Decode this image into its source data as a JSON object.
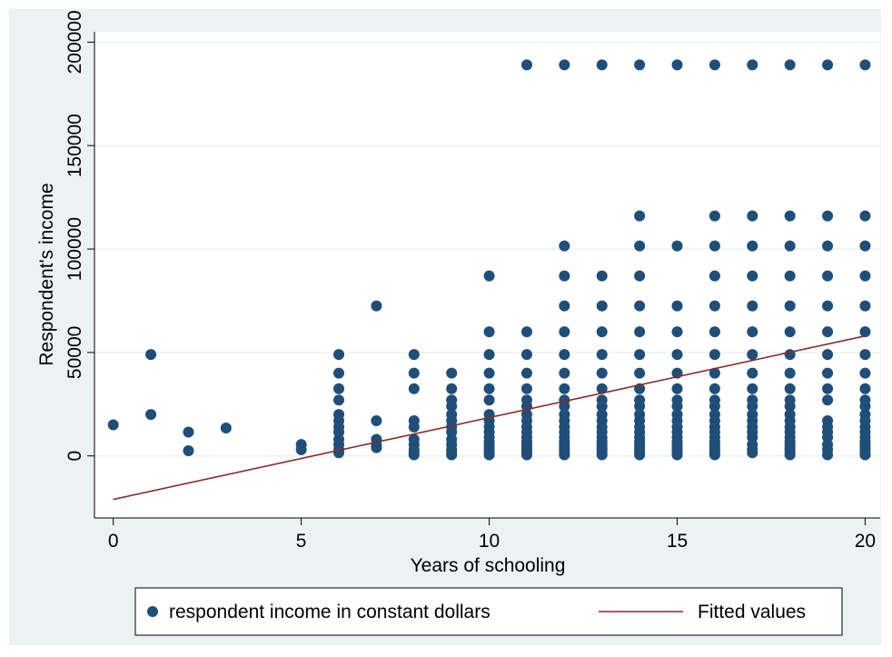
{
  "chart_data": {
    "type": "scatter",
    "title": "",
    "xlabel": "Years of schooling",
    "ylabel": "Respondent's income",
    "xlim": [
      -0.5,
      20.4
    ],
    "ylim": [
      -30000,
      205000
    ],
    "x_ticks": [
      "0",
      "5",
      "10",
      "15",
      "20"
    ],
    "y_ticks": [
      "0",
      "50000",
      "100000",
      "150000",
      "200000"
    ],
    "grid": true,
    "legend_position": "bottom",
    "colors": {
      "points": "#1f4e79",
      "fit_line": "#8b2a2a",
      "outer_bg": "#eaf2f3",
      "plot_bg": "#ffffff",
      "grid": "#eaf2f3"
    },
    "series": [
      {
        "name": "respondent income in constant dollars",
        "kind": "scatter",
        "points": [
          [
            0,
            15000
          ],
          [
            1,
            49000
          ],
          [
            1,
            20000
          ],
          [
            2,
            11500
          ],
          [
            2,
            2500
          ],
          [
            3,
            13500
          ],
          [
            5,
            5500
          ],
          [
            5,
            3000
          ],
          [
            6,
            49000
          ],
          [
            6,
            40000
          ],
          [
            6,
            32500
          ],
          [
            6,
            27000
          ],
          [
            6,
            20000
          ],
          [
            6,
            17000
          ],
          [
            6,
            14000
          ],
          [
            6,
            11500
          ],
          [
            6,
            8000
          ],
          [
            6,
            5500
          ],
          [
            6,
            3000
          ],
          [
            6,
            1500
          ],
          [
            7,
            72500
          ],
          [
            7,
            17000
          ],
          [
            7,
            8000
          ],
          [
            7,
            5500
          ],
          [
            7,
            4000
          ],
          [
            8,
            49000
          ],
          [
            8,
            40000
          ],
          [
            8,
            32500
          ],
          [
            8,
            17000
          ],
          [
            8,
            14000
          ],
          [
            8,
            8000
          ],
          [
            8,
            5500
          ],
          [
            8,
            3000
          ],
          [
            8,
            1500
          ],
          [
            8,
            500
          ],
          [
            9,
            40000
          ],
          [
            9,
            32500
          ],
          [
            9,
            27000
          ],
          [
            9,
            24000
          ],
          [
            9,
            20000
          ],
          [
            9,
            17000
          ],
          [
            9,
            14000
          ],
          [
            9,
            11500
          ],
          [
            9,
            8000
          ],
          [
            9,
            5500
          ],
          [
            9,
            3000
          ],
          [
            9,
            1500
          ],
          [
            9,
            500
          ],
          [
            10,
            87000
          ],
          [
            10,
            60000
          ],
          [
            10,
            49000
          ],
          [
            10,
            40000
          ],
          [
            10,
            32500
          ],
          [
            10,
            27000
          ],
          [
            10,
            20000
          ],
          [
            10,
            17000
          ],
          [
            10,
            14000
          ],
          [
            10,
            11500
          ],
          [
            10,
            9000
          ],
          [
            10,
            7000
          ],
          [
            10,
            5500
          ],
          [
            10,
            4000
          ],
          [
            10,
            3000
          ],
          [
            10,
            1500
          ],
          [
            10,
            500
          ],
          [
            11,
            189000
          ],
          [
            11,
            60000
          ],
          [
            11,
            49000
          ],
          [
            11,
            40000
          ],
          [
            11,
            32500
          ],
          [
            11,
            27000
          ],
          [
            11,
            24000
          ],
          [
            11,
            20000
          ],
          [
            11,
            17000
          ],
          [
            11,
            14000
          ],
          [
            11,
            11500
          ],
          [
            11,
            9000
          ],
          [
            11,
            7000
          ],
          [
            11,
            5500
          ],
          [
            11,
            4000
          ],
          [
            11,
            3000
          ],
          [
            11,
            1500
          ],
          [
            11,
            500
          ],
          [
            12,
            189000
          ],
          [
            12,
            101500
          ],
          [
            12,
            87000
          ],
          [
            12,
            72500
          ],
          [
            12,
            60000
          ],
          [
            12,
            49000
          ],
          [
            12,
            40000
          ],
          [
            12,
            32500
          ],
          [
            12,
            27000
          ],
          [
            12,
            24000
          ],
          [
            12,
            20000
          ],
          [
            12,
            17000
          ],
          [
            12,
            14000
          ],
          [
            12,
            11500
          ],
          [
            12,
            9000
          ],
          [
            12,
            7000
          ],
          [
            12,
            5500
          ],
          [
            12,
            4000
          ],
          [
            12,
            3000
          ],
          [
            12,
            1500
          ],
          [
            12,
            500
          ],
          [
            13,
            189000
          ],
          [
            13,
            87000
          ],
          [
            13,
            72500
          ],
          [
            13,
            60000
          ],
          [
            13,
            49000
          ],
          [
            13,
            40000
          ],
          [
            13,
            32500
          ],
          [
            13,
            27000
          ],
          [
            13,
            24000
          ],
          [
            13,
            20000
          ],
          [
            13,
            17000
          ],
          [
            13,
            14000
          ],
          [
            13,
            11500
          ],
          [
            13,
            9000
          ],
          [
            13,
            7000
          ],
          [
            13,
            5500
          ],
          [
            13,
            4000
          ],
          [
            13,
            3000
          ],
          [
            13,
            1500
          ],
          [
            13,
            500
          ],
          [
            14,
            189000
          ],
          [
            14,
            116000
          ],
          [
            14,
            101500
          ],
          [
            14,
            87000
          ],
          [
            14,
            72500
          ],
          [
            14,
            60000
          ],
          [
            14,
            49000
          ],
          [
            14,
            40000
          ],
          [
            14,
            32500
          ],
          [
            14,
            27000
          ],
          [
            14,
            24000
          ],
          [
            14,
            20000
          ],
          [
            14,
            17000
          ],
          [
            14,
            14000
          ],
          [
            14,
            11500
          ],
          [
            14,
            9000
          ],
          [
            14,
            7000
          ],
          [
            14,
            5500
          ],
          [
            14,
            4000
          ],
          [
            14,
            3000
          ],
          [
            14,
            1500
          ],
          [
            14,
            500
          ],
          [
            15,
            189000
          ],
          [
            15,
            101500
          ],
          [
            15,
            72500
          ],
          [
            15,
            60000
          ],
          [
            15,
            49000
          ],
          [
            15,
            40000
          ],
          [
            15,
            32500
          ],
          [
            15,
            27000
          ],
          [
            15,
            24000
          ],
          [
            15,
            20000
          ],
          [
            15,
            17000
          ],
          [
            15,
            14000
          ],
          [
            15,
            11500
          ],
          [
            15,
            9000
          ],
          [
            15,
            7000
          ],
          [
            15,
            5500
          ],
          [
            15,
            4000
          ],
          [
            15,
            3000
          ],
          [
            15,
            1500
          ],
          [
            15,
            500
          ],
          [
            16,
            189000
          ],
          [
            16,
            116000
          ],
          [
            16,
            101500
          ],
          [
            16,
            87000
          ],
          [
            16,
            72500
          ],
          [
            16,
            60000
          ],
          [
            16,
            49000
          ],
          [
            16,
            40000
          ],
          [
            16,
            32500
          ],
          [
            16,
            27000
          ],
          [
            16,
            24000
          ],
          [
            16,
            20000
          ],
          [
            16,
            17000
          ],
          [
            16,
            14000
          ],
          [
            16,
            11500
          ],
          [
            16,
            9000
          ],
          [
            16,
            7000
          ],
          [
            16,
            5500
          ],
          [
            16,
            4000
          ],
          [
            16,
            3000
          ],
          [
            16,
            1500
          ],
          [
            16,
            500
          ],
          [
            17,
            189000
          ],
          [
            17,
            116000
          ],
          [
            17,
            101500
          ],
          [
            17,
            87000
          ],
          [
            17,
            72500
          ],
          [
            17,
            60000
          ],
          [
            17,
            49000
          ],
          [
            17,
            40000
          ],
          [
            17,
            32500
          ],
          [
            17,
            27000
          ],
          [
            17,
            24000
          ],
          [
            17,
            20000
          ],
          [
            17,
            17000
          ],
          [
            17,
            14000
          ],
          [
            17,
            11500
          ],
          [
            17,
            9000
          ],
          [
            17,
            5500
          ],
          [
            17,
            3000
          ],
          [
            17,
            1500
          ],
          [
            18,
            189000
          ],
          [
            18,
            116000
          ],
          [
            18,
            101500
          ],
          [
            18,
            87000
          ],
          [
            18,
            72500
          ],
          [
            18,
            60000
          ],
          [
            18,
            49000
          ],
          [
            18,
            40000
          ],
          [
            18,
            32500
          ],
          [
            18,
            27000
          ],
          [
            18,
            24000
          ],
          [
            18,
            20000
          ],
          [
            18,
            17000
          ],
          [
            18,
            14000
          ],
          [
            18,
            11500
          ],
          [
            18,
            9000
          ],
          [
            18,
            7000
          ],
          [
            18,
            5500
          ],
          [
            18,
            4000
          ],
          [
            18,
            3000
          ],
          [
            18,
            1500
          ],
          [
            18,
            500
          ],
          [
            19,
            189000
          ],
          [
            19,
            116000
          ],
          [
            19,
            101500
          ],
          [
            19,
            87000
          ],
          [
            19,
            72500
          ],
          [
            19,
            60000
          ],
          [
            19,
            49000
          ],
          [
            19,
            40000
          ],
          [
            19,
            32500
          ],
          [
            19,
            27000
          ],
          [
            19,
            17000
          ],
          [
            19,
            14000
          ],
          [
            19,
            11500
          ],
          [
            19,
            9000
          ],
          [
            19,
            5500
          ],
          [
            19,
            3000
          ],
          [
            19,
            500
          ],
          [
            20,
            189000
          ],
          [
            20,
            116000
          ],
          [
            20,
            101500
          ],
          [
            20,
            87000
          ],
          [
            20,
            72500
          ],
          [
            20,
            60000
          ],
          [
            20,
            49000
          ],
          [
            20,
            40000
          ],
          [
            20,
            32500
          ],
          [
            20,
            27000
          ],
          [
            20,
            24000
          ],
          [
            20,
            20000
          ],
          [
            20,
            17000
          ],
          [
            20,
            14000
          ],
          [
            20,
            11500
          ],
          [
            20,
            9000
          ],
          [
            20,
            7000
          ],
          [
            20,
            5500
          ],
          [
            20,
            4000
          ],
          [
            20,
            3000
          ],
          [
            20,
            1500
          ],
          [
            20,
            500
          ]
        ]
      },
      {
        "name": "Fitted values",
        "kind": "line",
        "points": [
          [
            0,
            -21000
          ],
          [
            20,
            58000
          ]
        ]
      }
    ]
  }
}
